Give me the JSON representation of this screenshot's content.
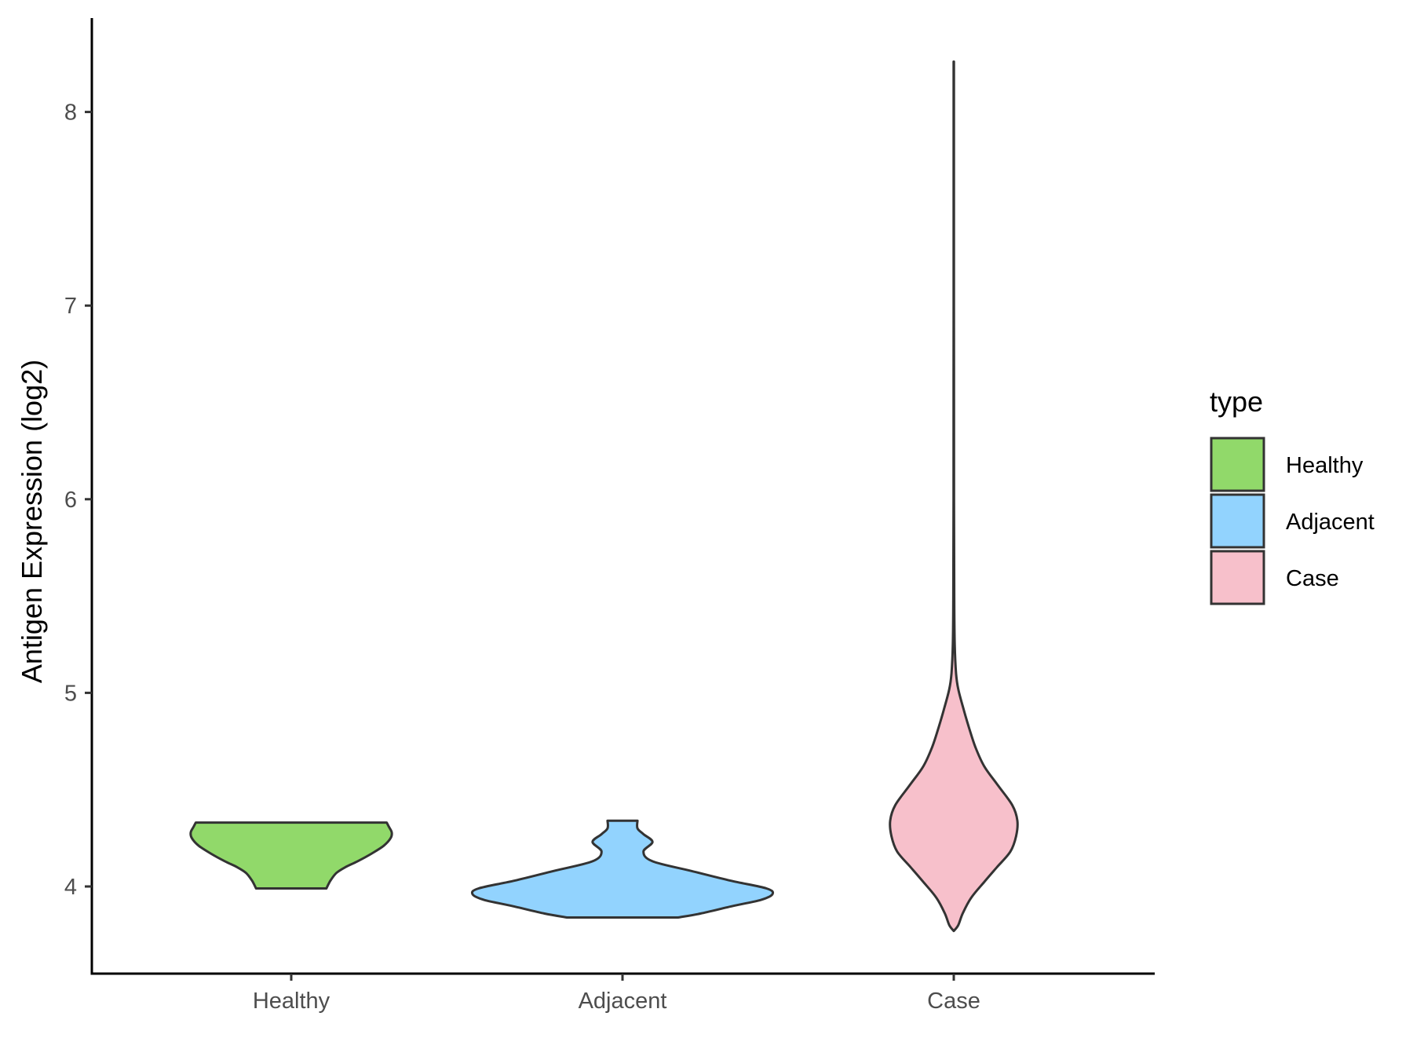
{
  "chart_data": {
    "type": "violin",
    "ylabel": "Antigen Expression (log2)",
    "xlabel": "",
    "ylim": [
      3.55,
      8.48
    ],
    "yticks": [
      4,
      5,
      6,
      7,
      8
    ],
    "categories": [
      "Healthy",
      "Adjacent",
      "Case"
    ],
    "grid": false,
    "legend": {
      "title": "type",
      "position": "right",
      "entries": [
        "Healthy",
        "Adjacent",
        "Case"
      ]
    },
    "series": [
      {
        "name": "Healthy",
        "color": "#91d96a",
        "min": 3.99,
        "max": 4.33,
        "profile": [
          [
            3.99,
            0.35
          ],
          [
            4.03,
            0.39
          ],
          [
            4.07,
            0.45
          ],
          [
            4.1,
            0.54
          ],
          [
            4.13,
            0.66
          ],
          [
            4.17,
            0.8
          ],
          [
            4.21,
            0.92
          ],
          [
            4.25,
            0.99
          ],
          [
            4.28,
            1.0
          ],
          [
            4.31,
            0.97
          ],
          [
            4.33,
            0.95
          ]
        ]
      },
      {
        "name": "Adjacent",
        "color": "#92d3fe",
        "min": 3.84,
        "max": 4.34,
        "profile": [
          [
            3.84,
            0.37
          ],
          [
            3.86,
            0.52
          ],
          [
            3.9,
            0.74
          ],
          [
            3.93,
            0.92
          ],
          [
            3.96,
            1.0
          ],
          [
            3.99,
            0.96
          ],
          [
            4.03,
            0.72
          ],
          [
            4.08,
            0.46
          ],
          [
            4.13,
            0.2
          ],
          [
            4.18,
            0.14
          ],
          [
            4.23,
            0.2
          ],
          [
            4.27,
            0.14
          ],
          [
            4.3,
            0.1
          ],
          [
            4.34,
            0.1
          ]
        ]
      },
      {
        "name": "Case",
        "color": "#f7c0cb",
        "min": 3.77,
        "max": 8.26,
        "profile": [
          [
            3.77,
            0.0
          ],
          [
            3.8,
            0.07
          ],
          [
            3.86,
            0.14
          ],
          [
            3.94,
            0.27
          ],
          [
            4.02,
            0.47
          ],
          [
            4.1,
            0.68
          ],
          [
            4.18,
            0.89
          ],
          [
            4.26,
            0.98
          ],
          [
            4.34,
            1.0
          ],
          [
            4.42,
            0.92
          ],
          [
            4.52,
            0.7
          ],
          [
            4.62,
            0.48
          ],
          [
            4.72,
            0.34
          ],
          [
            4.82,
            0.24
          ],
          [
            4.92,
            0.15
          ],
          [
            5.02,
            0.07
          ],
          [
            5.1,
            0.036
          ],
          [
            5.25,
            0.015
          ],
          [
            5.5,
            0.007
          ],
          [
            6.0,
            0.004
          ],
          [
            7.0,
            0.003
          ],
          [
            8.0,
            0.003
          ],
          [
            8.26,
            0.003
          ]
        ]
      }
    ]
  }
}
